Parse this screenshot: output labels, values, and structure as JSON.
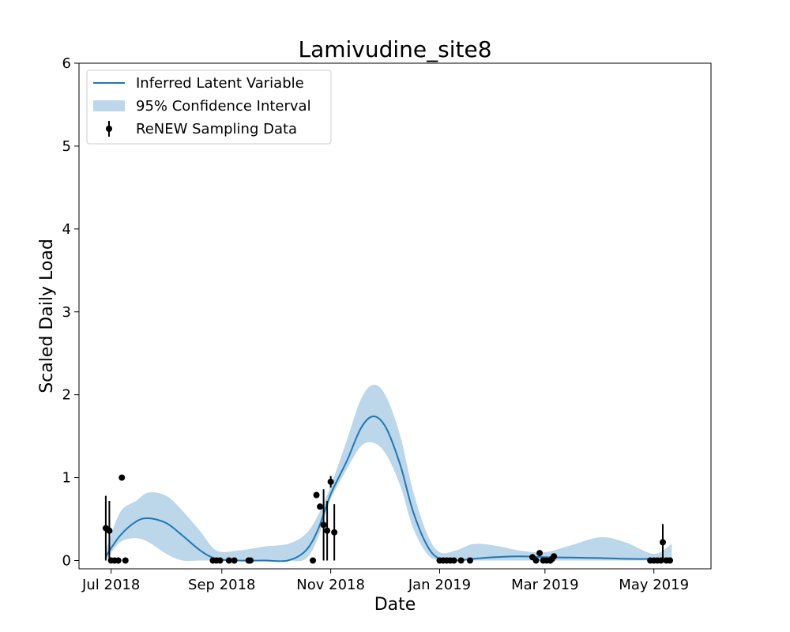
{
  "chart_data": {
    "type": "line",
    "title": "Lamivudine_site8",
    "xlabel": "Date",
    "ylabel": "Scaled Daily Load",
    "xlim": [
      "2018-06-13",
      "2019-06-02"
    ],
    "ylim": [
      -0.1,
      6
    ],
    "x_ticks": [
      {
        "date": "2018-07-01",
        "label": "Jul 2018"
      },
      {
        "date": "2018-09-01",
        "label": "Sep 2018"
      },
      {
        "date": "2018-11-01",
        "label": "Nov 2018"
      },
      {
        "date": "2019-01-01",
        "label": "Jan 2019"
      },
      {
        "date": "2019-03-01",
        "label": "Mar 2019"
      },
      {
        "date": "2019-05-01",
        "label": "May 2019"
      }
    ],
    "y_ticks": [
      0,
      1,
      2,
      3,
      4,
      5,
      6
    ],
    "grid": false,
    "legend": {
      "position": "top-left",
      "entries": [
        {
          "label": "Inferred Latent Variable",
          "kind": "line"
        },
        {
          "label": "95% Confidence Interval",
          "kind": "band"
        },
        {
          "label": "ReNEW Sampling Data",
          "kind": "errorbar"
        }
      ]
    },
    "colors": {
      "line": "#1f77b4",
      "band": "#bcd6ea",
      "points": "#000000"
    },
    "series": [
      {
        "name": "Inferred Latent Variable",
        "kind": "line",
        "x": [
          "2018-06-28",
          "2018-07-06",
          "2018-07-15",
          "2018-07-22",
          "2018-08-01",
          "2018-08-10",
          "2018-08-20",
          "2018-08-29",
          "2018-09-10",
          "2018-09-25",
          "2018-10-08",
          "2018-10-18",
          "2018-10-25",
          "2018-11-01",
          "2018-11-10",
          "2018-11-18",
          "2018-11-25",
          "2018-12-02",
          "2018-12-10",
          "2018-12-17",
          "2018-12-25",
          "2019-01-01",
          "2019-01-10",
          "2019-01-20",
          "2019-02-01",
          "2019-02-15",
          "2019-03-01",
          "2019-03-15",
          "2019-04-01",
          "2019-04-15",
          "2019-05-01",
          "2019-05-11"
        ],
        "y": [
          0.05,
          0.3,
          0.47,
          0.51,
          0.45,
          0.3,
          0.12,
          0.02,
          0.0,
          0.0,
          0.0,
          0.12,
          0.38,
          0.8,
          1.2,
          1.6,
          1.74,
          1.6,
          1.15,
          0.6,
          0.18,
          0.02,
          0.0,
          0.02,
          0.04,
          0.05,
          0.04,
          0.035,
          0.03,
          0.02,
          0.02,
          0.03
        ]
      },
      {
        "name": "95% Confidence Interval",
        "kind": "band",
        "x": [
          "2018-06-28",
          "2018-07-06",
          "2018-07-15",
          "2018-07-22",
          "2018-08-01",
          "2018-08-10",
          "2018-08-20",
          "2018-08-29",
          "2018-09-10",
          "2018-09-25",
          "2018-10-08",
          "2018-10-18",
          "2018-10-25",
          "2018-11-01",
          "2018-11-10",
          "2018-11-18",
          "2018-11-25",
          "2018-12-02",
          "2018-12-10",
          "2018-12-17",
          "2018-12-25",
          "2019-01-01",
          "2019-01-10",
          "2019-01-20",
          "2019-02-01",
          "2019-02-15",
          "2019-03-01",
          "2019-03-15",
          "2019-04-01",
          "2019-04-15",
          "2019-05-01",
          "2019-05-11"
        ],
        "lower": [
          0.0,
          0.22,
          0.27,
          0.22,
          0.08,
          0.0,
          0.0,
          0.0,
          0.0,
          0.0,
          0.0,
          0.02,
          0.28,
          0.74,
          1.1,
          1.38,
          1.42,
          1.28,
          0.9,
          0.4,
          0.08,
          0.0,
          0.0,
          0.0,
          0.0,
          0.0,
          0.0,
          0.0,
          0.0,
          0.0,
          0.0,
          0.0
        ],
        "upper": [
          0.12,
          0.58,
          0.72,
          0.82,
          0.78,
          0.6,
          0.35,
          0.12,
          0.12,
          0.17,
          0.2,
          0.32,
          0.55,
          0.9,
          1.45,
          1.95,
          2.12,
          1.98,
          1.5,
          0.85,
          0.32,
          0.1,
          0.12,
          0.2,
          0.18,
          0.12,
          0.1,
          0.18,
          0.28,
          0.22,
          0.08,
          0.2
        ]
      },
      {
        "name": "ReNEW Sampling Data",
        "kind": "errorbar",
        "points": [
          {
            "x": "2018-06-28",
            "y": 0.39,
            "lo": 0.0,
            "hi": 0.78
          },
          {
            "x": "2018-06-30",
            "y": 0.36,
            "lo": 0.0,
            "hi": 0.72
          },
          {
            "x": "2018-07-01",
            "y": 0.0
          },
          {
            "x": "2018-07-03",
            "y": 0.0
          },
          {
            "x": "2018-07-05",
            "y": 0.0
          },
          {
            "x": "2018-07-07",
            "y": 1.0
          },
          {
            "x": "2018-07-09",
            "y": 0.0
          },
          {
            "x": "2018-08-27",
            "y": 0.0
          },
          {
            "x": "2018-08-29",
            "y": 0.0
          },
          {
            "x": "2018-08-31",
            "y": 0.0
          },
          {
            "x": "2018-09-05",
            "y": 0.0
          },
          {
            "x": "2018-09-08",
            "y": 0.0
          },
          {
            "x": "2018-09-16",
            "y": 0.0
          },
          {
            "x": "2018-09-17",
            "y": 0.0
          },
          {
            "x": "2018-10-22",
            "y": 0.0
          },
          {
            "x": "2018-10-24",
            "y": 0.79
          },
          {
            "x": "2018-10-26",
            "y": 0.65
          },
          {
            "x": "2018-10-28",
            "y": 0.43,
            "lo": 0.0,
            "hi": 0.86
          },
          {
            "x": "2018-10-30",
            "y": 0.36,
            "lo": 0.0,
            "hi": 0.72
          },
          {
            "x": "2018-11-01",
            "y": 0.95,
            "lo": 0.88,
            "hi": 1.02
          },
          {
            "x": "2018-11-03",
            "y": 0.34,
            "lo": 0.0,
            "hi": 0.68
          },
          {
            "x": "2019-01-01",
            "y": 0.0
          },
          {
            "x": "2019-01-03",
            "y": 0.0
          },
          {
            "x": "2019-01-05",
            "y": 0.0
          },
          {
            "x": "2019-01-07",
            "y": 0.0
          },
          {
            "x": "2019-01-09",
            "y": 0.0
          },
          {
            "x": "2019-01-13",
            "y": 0.0
          },
          {
            "x": "2019-01-18",
            "y": 0.0
          },
          {
            "x": "2019-02-22",
            "y": 0.04
          },
          {
            "x": "2019-02-24",
            "y": 0.0
          },
          {
            "x": "2019-02-26",
            "y": 0.09
          },
          {
            "x": "2019-02-28",
            "y": 0.0
          },
          {
            "x": "2019-03-02",
            "y": 0.0
          },
          {
            "x": "2019-03-04",
            "y": 0.0
          },
          {
            "x": "2019-03-05",
            "y": 0.02
          },
          {
            "x": "2019-03-06",
            "y": 0.05
          },
          {
            "x": "2019-04-29",
            "y": 0.0
          },
          {
            "x": "2019-05-01",
            "y": 0.0
          },
          {
            "x": "2019-05-03",
            "y": 0.0
          },
          {
            "x": "2019-05-05",
            "y": 0.0
          },
          {
            "x": "2019-05-06",
            "y": 0.22,
            "lo": 0.0,
            "hi": 0.44
          },
          {
            "x": "2019-05-08",
            "y": 0.0
          },
          {
            "x": "2019-05-10",
            "y": 0.0
          }
        ]
      }
    ]
  }
}
